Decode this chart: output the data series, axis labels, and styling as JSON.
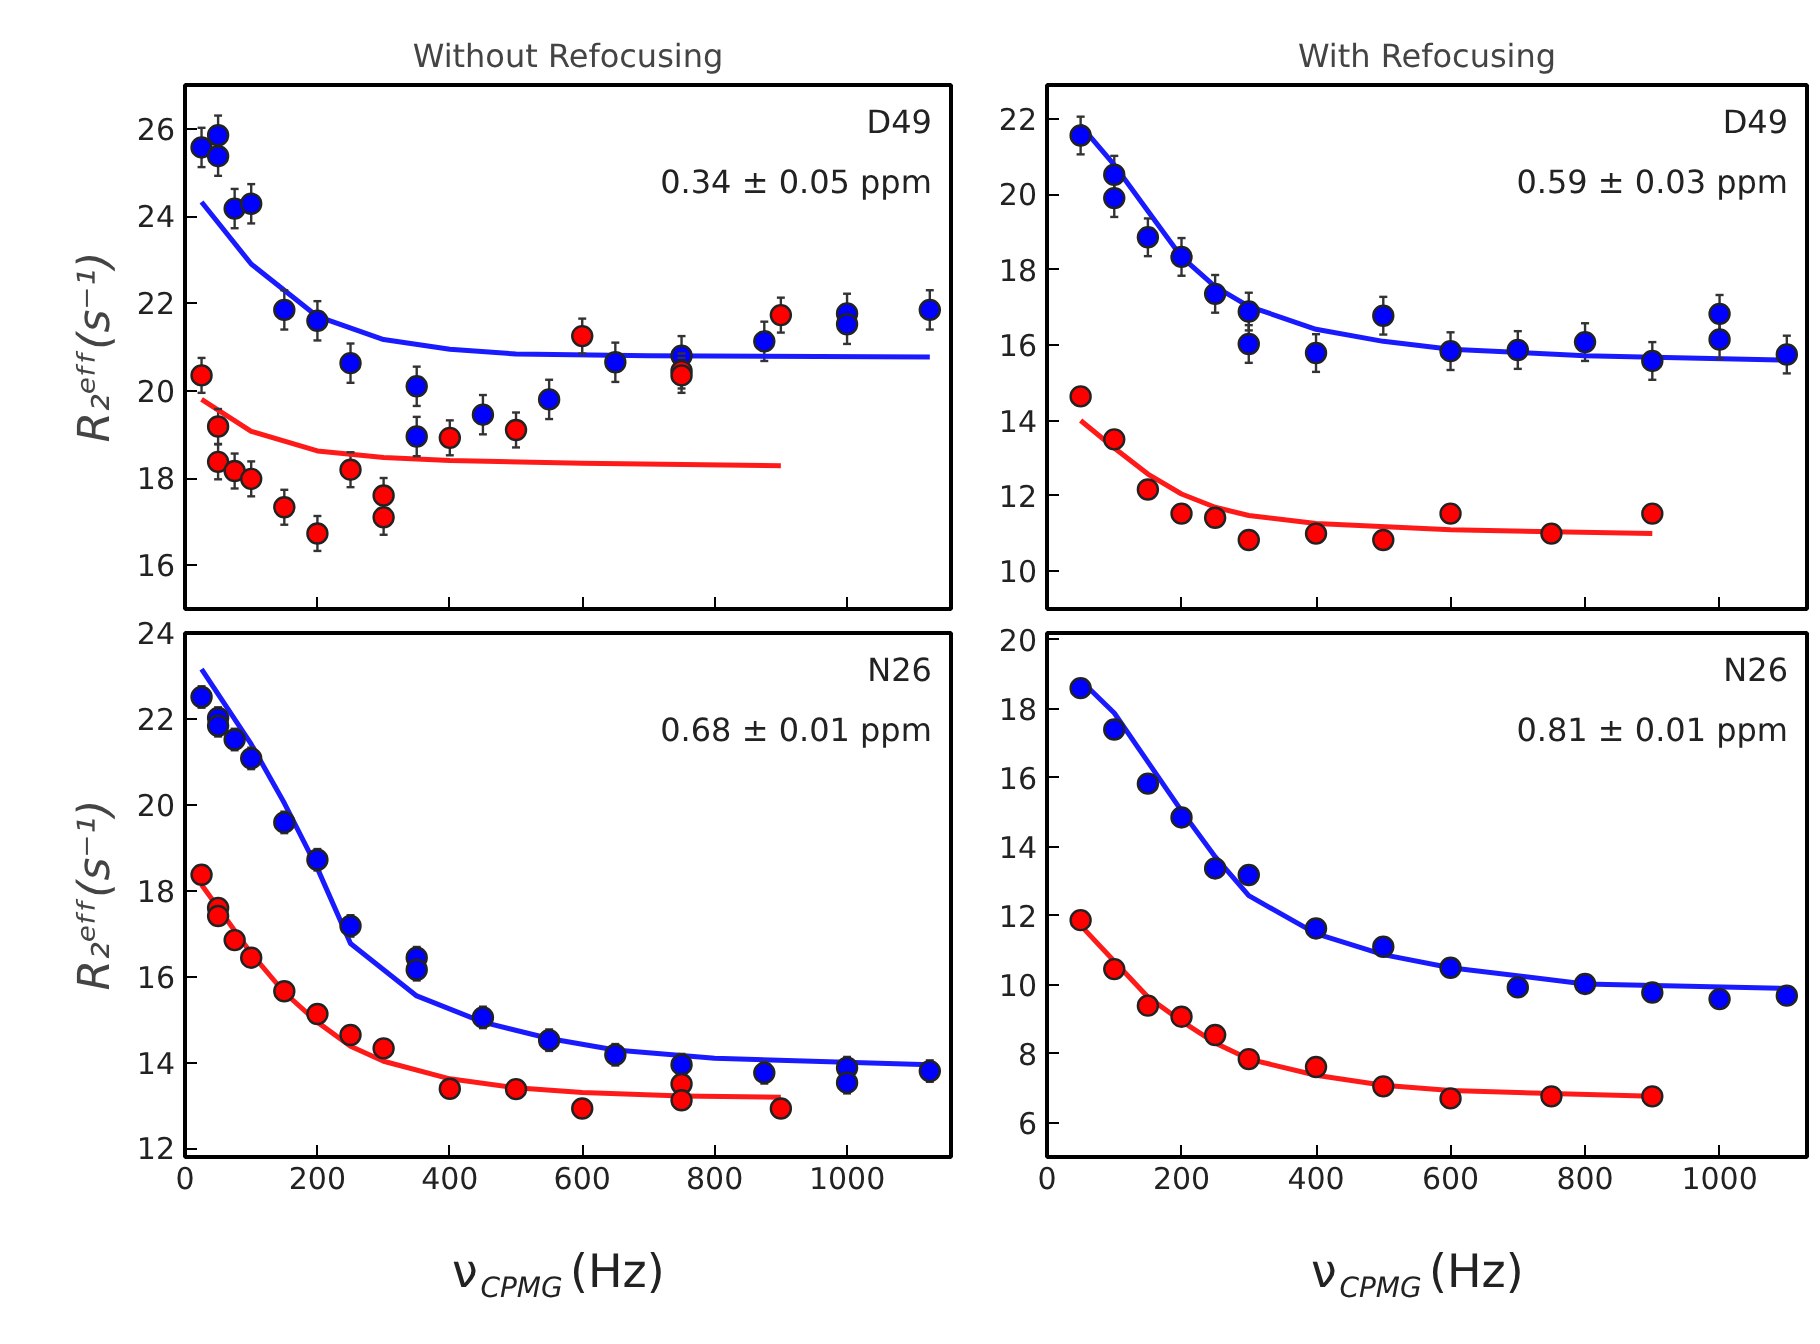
{
  "chart_data": [
    {
      "type": "scatter",
      "title": "Without Refocusing",
      "ylabel": "R₂ᵉᶠᶠ(s⁻¹)",
      "xlim": [
        0,
        1157
      ],
      "xticks": [
        0,
        200,
        400,
        600,
        800,
        1000
      ],
      "ylim": [
        15,
        27
      ],
      "yticks": [
        16,
        18,
        20,
        22,
        24,
        26
      ],
      "tick_labels": "y",
      "marker": "circle",
      "annotations": [
        "D49",
        "0.34 ± 0.05 ppm"
      ],
      "series": [
        {
          "type": "line",
          "marker": "none",
          "color": "#1a1aff",
          "x": [
            25,
            100,
            200,
            300,
            400,
            500,
            700,
            1125
          ],
          "values": [
            24.32,
            22.9,
            21.7,
            21.17,
            20.95,
            20.84,
            20.8,
            20.77
          ]
        },
        {
          "type": "line",
          "marker": "none",
          "color": "#ff1a1a",
          "x": [
            25,
            100,
            200,
            300,
            400,
            600,
            900
          ],
          "values": [
            19.8,
            19.07,
            18.62,
            18.47,
            18.4,
            18.34,
            18.28
          ]
        },
        {
          "color": "#0000ff",
          "x": [
            25,
            50,
            50,
            75,
            100,
            150,
            200,
            250,
            350,
            350,
            450,
            550,
            650,
            750,
            875,
            1000,
            1000,
            1125
          ],
          "values": [
            25.57,
            25.85,
            25.37,
            24.17,
            24.28,
            21.85,
            21.6,
            20.63,
            20.1,
            18.95,
            19.45,
            19.8,
            20.65,
            20.8,
            21.13,
            21.77,
            21.52,
            21.85
          ],
          "errors": [
            0.45,
            0.45,
            0.45,
            0.45,
            0.45,
            0.45,
            0.45,
            0.45,
            0.45,
            0.45,
            0.45,
            0.45,
            0.45,
            0.45,
            0.45,
            0.45,
            0.45,
            0.45
          ]
        },
        {
          "color": "#ff0000",
          "x": [
            25,
            50,
            50,
            75,
            100,
            150,
            200,
            250,
            300,
            300,
            400,
            500,
            600,
            750,
            750,
            900
          ],
          "values": [
            20.35,
            19.18,
            18.37,
            18.16,
            17.98,
            17.33,
            16.73,
            18.19,
            17.6,
            17.1,
            18.92,
            19.1,
            21.25,
            20.45,
            20.35,
            21.73
          ],
          "errors": [
            0.4,
            0.4,
            0.4,
            0.4,
            0.4,
            0.4,
            0.4,
            0.4,
            0.4,
            0.4,
            0.4,
            0.4,
            0.4,
            0.4,
            0.4,
            0.4
          ]
        }
      ]
    },
    {
      "type": "scatter",
      "title": "With Refocusing",
      "xlim": [
        0,
        1130
      ],
      "xticks": [
        0,
        200,
        400,
        600,
        800,
        1000
      ],
      "ylim": [
        9,
        22.9
      ],
      "yticks": [
        10,
        12,
        14,
        16,
        18,
        20,
        22
      ],
      "tick_labels": "y",
      "marker": "circle",
      "annotations": [
        "D49",
        "0.59 ± 0.03 ppm"
      ],
      "series": [
        {
          "type": "line",
          "marker": "none",
          "color": "#1a1aff",
          "x": [
            50,
            100,
            150,
            200,
            250,
            300,
            400,
            500,
            600,
            800,
            1100
          ],
          "values": [
            21.83,
            20.78,
            19.56,
            18.34,
            17.55,
            17.03,
            16.42,
            16.1,
            15.89,
            15.72,
            15.6
          ]
        },
        {
          "type": "line",
          "marker": "none",
          "color": "#ff1a1a",
          "x": [
            50,
            100,
            150,
            200,
            250,
            300,
            400,
            600,
            900
          ],
          "values": [
            14.0,
            13.27,
            12.58,
            12.05,
            11.7,
            11.48,
            11.27,
            11.1,
            11.0
          ]
        },
        {
          "color": "#0000ff",
          "x": [
            50,
            100,
            100,
            150,
            200,
            250,
            300,
            300,
            400,
            500,
            600,
            700,
            800,
            900,
            1000,
            1000,
            1100
          ],
          "values": [
            21.56,
            20.52,
            19.9,
            18.86,
            18.34,
            17.36,
            16.89,
            16.03,
            15.79,
            16.78,
            15.84,
            15.87,
            16.08,
            15.58,
            16.83,
            16.15,
            15.75
          ],
          "errors": [
            0.5,
            0.5,
            0.5,
            0.5,
            0.5,
            0.5,
            0.5,
            0.5,
            0.5,
            0.5,
            0.5,
            0.5,
            0.5,
            0.5,
            0.5,
            0.5,
            0.5
          ]
        },
        {
          "color": "#ff0000",
          "x": [
            50,
            100,
            150,
            200,
            250,
            300,
            400,
            500,
            600,
            750,
            900
          ],
          "values": [
            14.64,
            13.5,
            12.17,
            11.53,
            11.42,
            10.83,
            11.0,
            10.83,
            11.53,
            11.0,
            11.53
          ]
        }
      ]
    },
    {
      "type": "scatter",
      "xlabel": "ν$_{CPMG}$(Hz)",
      "ylabel": "R₂ᵉᶠᶠ(s⁻¹)",
      "xlim": [
        0,
        1157
      ],
      "xticks": [
        0,
        200,
        400,
        600,
        800,
        1000
      ],
      "ylim": [
        11.8,
        24
      ],
      "yticks": [
        12,
        14,
        16,
        18,
        20,
        22,
        24
      ],
      "marker": "circle",
      "annotations": [
        "N26",
        "0.68 ± 0.01 ppm"
      ],
      "series": [
        {
          "type": "line",
          "marker": "none",
          "color": "#1a1aff",
          "x": [
            25,
            100,
            150,
            200,
            250,
            300,
            350,
            450,
            550,
            650,
            800,
            1125
          ],
          "values": [
            23.16,
            21.41,
            20.04,
            18.52,
            16.77,
            16.16,
            15.55,
            14.94,
            14.56,
            14.29,
            14.1,
            13.95
          ]
        },
        {
          "type": "line",
          "marker": "none",
          "color": "#ff1a1a",
          "x": [
            25,
            100,
            150,
            200,
            250,
            300,
            400,
            500,
            600,
            750,
            900
          ],
          "values": [
            18.14,
            16.54,
            15.63,
            14.94,
            14.38,
            14.03,
            13.62,
            13.41,
            13.3,
            13.22,
            13.19
          ]
        },
        {
          "color": "#0000ff",
          "x": [
            25,
            50,
            50,
            75,
            100,
            150,
            200,
            250,
            350,
            350,
            450,
            550,
            650,
            750,
            875,
            1000,
            1000,
            1125
          ],
          "values": [
            22.51,
            22.02,
            21.84,
            21.52,
            21.08,
            19.59,
            18.72,
            17.18,
            16.44,
            16.16,
            15.05,
            14.52,
            14.18,
            13.95,
            13.76,
            13.88,
            13.53,
            13.8
          ],
          "errors": [
            0.25,
            0.25,
            0.25,
            0.25,
            0.25,
            0.25,
            0.25,
            0.25,
            0.25,
            0.25,
            0.25,
            0.25,
            0.25,
            0.25,
            0.25,
            0.25,
            0.25,
            0.25
          ]
        },
        {
          "color": "#ff0000",
          "x": [
            25,
            50,
            50,
            75,
            100,
            150,
            200,
            250,
            300,
            400,
            500,
            600,
            750,
            750,
            900
          ],
          "values": [
            18.37,
            17.6,
            17.41,
            16.85,
            16.44,
            15.66,
            15.13,
            14.64,
            14.33,
            13.39,
            13.38,
            12.93,
            13.5,
            13.12,
            12.93
          ],
          "errors": [
            0.2,
            0.2,
            0.2,
            0.2,
            0.2,
            0.2,
            0.2,
            0.2,
            0.2,
            0.2,
            0.2,
            0.2,
            0.2,
            0.2,
            0.2
          ]
        }
      ]
    },
    {
      "type": "scatter",
      "xlabel": "ν$_{CPMG}$(Hz)",
      "xlim": [
        0,
        1130
      ],
      "xticks": [
        0,
        200,
        400,
        600,
        800,
        1000
      ],
      "ylim": [
        5,
        20.2
      ],
      "yticks": [
        6,
        8,
        10,
        12,
        14,
        16,
        18,
        20
      ],
      "marker": "circle",
      "annotations": [
        "N26",
        "0.81 ± 0.01 ppm"
      ],
      "series": [
        {
          "type": "line",
          "marker": "none",
          "color": "#1a1aff",
          "x": [
            50,
            100,
            150,
            200,
            250,
            300,
            400,
            500,
            600,
            800,
            1100
          ],
          "values": [
            18.83,
            17.88,
            16.46,
            15.04,
            13.71,
            12.58,
            11.48,
            10.87,
            10.49,
            10.02,
            9.89
          ]
        },
        {
          "type": "line",
          "marker": "none",
          "color": "#ff1a1a",
          "x": [
            50,
            100,
            150,
            200,
            250,
            300,
            400,
            500,
            600,
            750,
            900
          ],
          "values": [
            11.72,
            10.68,
            9.64,
            8.94,
            8.31,
            7.84,
            7.37,
            7.08,
            6.93,
            6.84,
            6.76
          ]
        },
        {
          "color": "#0000ff",
          "x": [
            50,
            100,
            150,
            200,
            250,
            300,
            400,
            500,
            600,
            700,
            800,
            900,
            1000,
            1100
          ],
          "values": [
            18.6,
            17.4,
            15.83,
            14.85,
            13.37,
            13.18,
            11.63,
            11.1,
            10.49,
            9.92,
            10.02,
            9.77,
            9.58,
            9.68
          ]
        },
        {
          "color": "#ff0000",
          "x": [
            50,
            100,
            150,
            200,
            250,
            300,
            400,
            500,
            600,
            750,
            900
          ],
          "values": [
            11.87,
            10.45,
            9.39,
            9.07,
            8.54,
            7.84,
            7.61,
            7.05,
            6.7,
            6.76,
            6.76
          ]
        }
      ]
    }
  ]
}
